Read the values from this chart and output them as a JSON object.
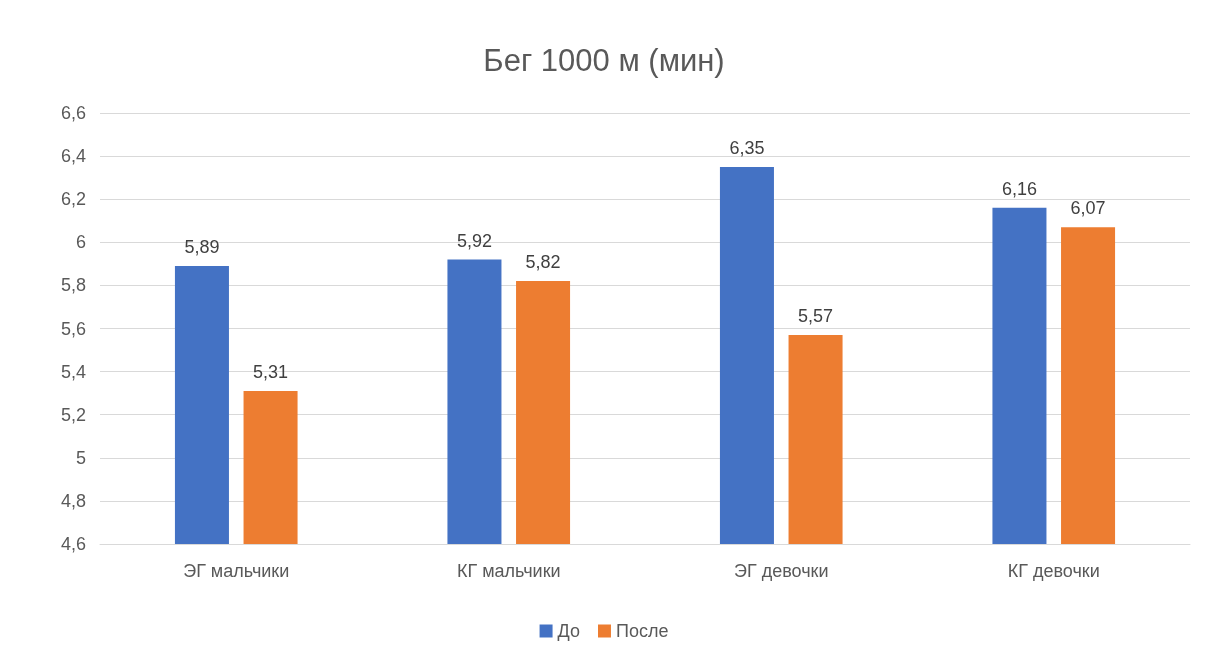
{
  "chart_data": {
    "type": "bar",
    "title": "Бег 1000 м (мин)",
    "categories": [
      "ЭГ мальчики",
      "КГ мальчики",
      "ЭГ девочки",
      "КГ девочки"
    ],
    "series": [
      {
        "name": "До",
        "color": "#4472c4",
        "values": [
          5.89,
          5.92,
          6.35,
          6.16
        ],
        "value_labels": [
          "5,89",
          "5,92",
          "6,35",
          "6,16"
        ]
      },
      {
        "name": "После",
        "color": "#ed7d31",
        "values": [
          5.31,
          5.82,
          5.57,
          6.07
        ],
        "value_labels": [
          "5,31",
          "5,82",
          "5,57",
          "6,07"
        ]
      }
    ],
    "ylim": [
      4.6,
      6.6
    ],
    "yticks": [
      {
        "value": 4.6,
        "label": "4,6"
      },
      {
        "value": 4.8,
        "label": "4,8"
      },
      {
        "value": 5,
        "label": "5"
      },
      {
        "value": 5.2,
        "label": "5,2"
      },
      {
        "value": 5.4,
        "label": "5,4"
      },
      {
        "value": 5.6,
        "label": "5,6"
      },
      {
        "value": 5.8,
        "label": "5,8"
      },
      {
        "value": 6,
        "label": "6"
      },
      {
        "value": 6.2,
        "label": "6,2"
      },
      {
        "value": 6.4,
        "label": "6,4"
      },
      {
        "value": 6.6,
        "label": "6,6"
      }
    ],
    "grid": "y",
    "legend": "bottom"
  }
}
